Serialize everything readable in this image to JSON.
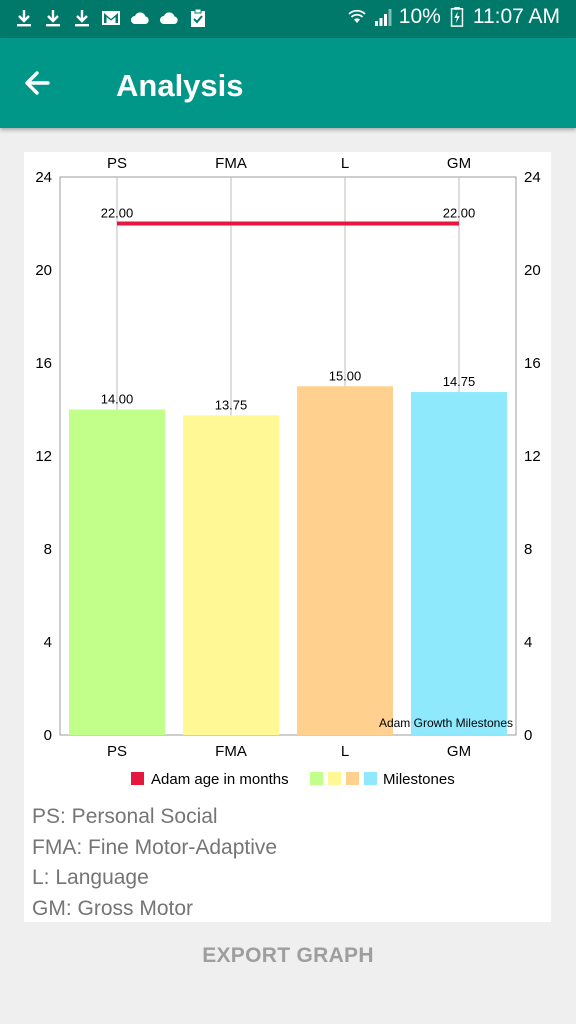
{
  "status_bar": {
    "battery_text": "10%",
    "time": "11:07 AM",
    "left_icons": [
      "download-icon",
      "download-icon",
      "download-icon",
      "gmail-icon",
      "cloud-icon",
      "cloud-icon",
      "clipboard-check-icon"
    ]
  },
  "app_bar": {
    "title": "Analysis",
    "back_icon": "arrow-back-icon"
  },
  "chart_data": {
    "type": "bar",
    "categories": [
      "PS",
      "FMA",
      "L",
      "GM"
    ],
    "series": [
      {
        "name": "Milestones",
        "values": [
          14.0,
          13.75,
          15.0,
          14.75
        ],
        "colors": [
          "#c2ff8a",
          "#fff894",
          "#ffd08e",
          "#8ee9fd"
        ]
      },
      {
        "name": "Adam age in months",
        "type": "line",
        "values": [
          22.0,
          22.0,
          22.0,
          22.0
        ],
        "color": "#e5173e",
        "labels_at": [
          "PS",
          "GM"
        ]
      }
    ],
    "value_labels": [
      "14.00",
      "13.75",
      "15.00",
      "14.75"
    ],
    "line_labels": [
      "22.00",
      "22.00"
    ],
    "ylim": [
      0,
      24
    ],
    "yticks": [
      0,
      4,
      8,
      12,
      16,
      20,
      24
    ],
    "description": "Adam Growth Milestones",
    "grid": "vertical",
    "legend_position": "bottom"
  },
  "abbreviations": [
    "PS: Personal Social",
    "FMA: Fine Motor-Adaptive",
    "L: Language",
    "GM: Gross Motor"
  ],
  "export_button": "EXPORT GRAPH"
}
